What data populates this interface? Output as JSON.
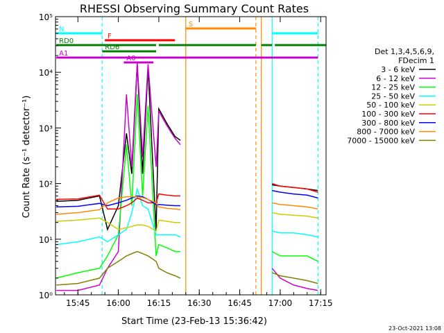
{
  "chart_data": {
    "type": "line",
    "title": "RHESSI Observing Summary Count Rates",
    "xlabel": "Start Time (23-Feb-13 15:36:42)",
    "ylabel": "Count Rate (s⁻¹ detector⁻¹)",
    "y_scale": "log",
    "ylim": [
      1,
      100000
    ],
    "xlim": [
      "15:36:42",
      "17:17:00"
    ],
    "x_ticks": [
      "15:45",
      "16:00",
      "16:15",
      "16:30",
      "16:45",
      "17:00",
      "17:15"
    ],
    "y_ticks": [
      "10⁰",
      "10¹",
      "10²",
      "10³",
      "10⁴",
      "10⁵"
    ],
    "legend_title": [
      "Det 1,3,4,5,6,9,",
      "FDecim 1"
    ],
    "legend_position": "right",
    "footer_date": "23-Oct-2021 13:08",
    "series": [
      {
        "name": "3 - 6 keV",
        "color": "#000000",
        "x": [
          "15:37",
          "15:45",
          "15:53",
          "15:56",
          "16:00",
          "16:03",
          "16:05",
          "16:07",
          "16:09",
          "16:11",
          "16:14",
          "16:15",
          "16:18",
          "16:21",
          "16:23",
          "16:55",
          "16:57",
          "17:00",
          "17:05",
          "17:10",
          "17:14"
        ],
        "values": [
          48,
          50,
          60,
          15,
          40,
          800,
          150,
          14000,
          150,
          12000,
          14,
          2200,
          1200,
          700,
          600,
          null,
          95,
          90,
          85,
          80,
          75
        ]
      },
      {
        "name": "6 - 12 keV",
        "color": "#cc00cc",
        "x": [
          "15:37",
          "15:45",
          "15:53",
          "15:56",
          "16:00",
          "16:03",
          "16:05",
          "16:07",
          "16:09",
          "16:11",
          "16:14",
          "16:15",
          "16:18",
          "16:21",
          "16:23",
          "16:55",
          "16:57",
          "17:00",
          "17:05",
          "17:10",
          "17:14"
        ],
        "values": [
          1.2,
          1.2,
          1.5,
          3,
          6,
          4000,
          200,
          15000,
          300,
          14000,
          200,
          2000,
          1100,
          650,
          500,
          null,
          3,
          2,
          1.5,
          1.3,
          1.2
        ]
      },
      {
        "name": "12 - 25 keV",
        "color": "#00ff00",
        "x": [
          "15:37",
          "15:45",
          "15:53",
          "15:56",
          "16:00",
          "16:03",
          "16:05",
          "16:07",
          "16:09",
          "16:11",
          "16:14",
          "16:15",
          "16:18",
          "16:21",
          "16:23",
          "16:55",
          "16:57",
          "17:00",
          "17:05",
          "17:10",
          "17:14"
        ],
        "values": [
          2,
          2.5,
          3,
          5,
          12,
          500,
          40,
          4000,
          60,
          2500,
          5,
          8,
          7,
          6,
          6,
          null,
          6,
          5,
          5,
          5,
          4
        ]
      },
      {
        "name": "25 - 50 keV",
        "color": "#00ffff",
        "x": [
          "15:37",
          "15:45",
          "15:53",
          "15:56",
          "16:00",
          "16:03",
          "16:05",
          "16:07",
          "16:09",
          "16:11",
          "16:14",
          "16:15",
          "16:18",
          "16:21",
          "16:23",
          "16:55",
          "16:57",
          "17:00",
          "17:05",
          "17:10",
          "17:14"
        ],
        "values": [
          8,
          9,
          11,
          9,
          12,
          15,
          30,
          80,
          40,
          35,
          12,
          12,
          12,
          12,
          11,
          null,
          14,
          13,
          13,
          12,
          11
        ]
      },
      {
        "name": "50 - 100 keV",
        "color": "#cccc00",
        "x": [
          "15:37",
          "15:45",
          "15:53",
          "15:56",
          "16:00",
          "16:03",
          "16:05",
          "16:07",
          "16:09",
          "16:11",
          "16:14",
          "16:15",
          "16:18",
          "16:21",
          "16:23",
          "16:55",
          "16:57",
          "17:00",
          "17:05",
          "17:10",
          "17:14"
        ],
        "values": [
          21,
          22,
          24,
          20,
          15,
          16,
          17,
          18,
          18,
          17,
          14,
          22,
          21,
          20,
          20,
          null,
          30,
          28,
          27,
          26,
          24
        ]
      },
      {
        "name": "100 - 300 keV",
        "color": "#ff0000",
        "x": [
          "15:37",
          "15:45",
          "15:53",
          "15:56",
          "16:00",
          "16:03",
          "16:05",
          "16:07",
          "16:09",
          "16:11",
          "16:14",
          "16:15",
          "16:18",
          "16:21",
          "16:23",
          "16:55",
          "16:57",
          "17:00",
          "17:05",
          "17:10",
          "17:14"
        ],
        "values": [
          52,
          53,
          62,
          35,
          35,
          40,
          45,
          55,
          50,
          45,
          45,
          65,
          62,
          60,
          60,
          null,
          100,
          90,
          85,
          80,
          70
        ]
      },
      {
        "name": "300 - 800 keV",
        "color": "#0000ff",
        "x": [
          "15:37",
          "15:45",
          "15:53",
          "15:56",
          "16:00",
          "16:03",
          "16:05",
          "16:07",
          "16:09",
          "16:11",
          "16:14",
          "16:15",
          "16:18",
          "16:21",
          "16:23",
          "16:55",
          "16:57",
          "17:00",
          "17:05",
          "17:10",
          "17:14"
        ],
        "values": [
          38,
          39,
          44,
          40,
          45,
          50,
          55,
          60,
          58,
          52,
          42,
          42,
          41,
          40,
          40,
          null,
          75,
          70,
          65,
          62,
          55
        ]
      },
      {
        "name": "800 - 7000 keV",
        "color": "#ff8800",
        "x": [
          "15:37",
          "15:45",
          "15:53",
          "15:56",
          "16:00",
          "16:03",
          "16:05",
          "16:07",
          "16:09",
          "16:11",
          "16:14",
          "16:15",
          "16:18",
          "16:21",
          "16:23",
          "16:55",
          "16:57",
          "17:00",
          "17:05",
          "17:10",
          "17:14"
        ],
        "values": [
          28,
          30,
          34,
          45,
          55,
          58,
          58,
          58,
          56,
          52,
          45,
          38,
          36,
          35,
          34,
          null,
          45,
          42,
          40,
          38,
          35
        ]
      },
      {
        "name": "7000 - 15000 keV",
        "color": "#808000",
        "x": [
          "15:37",
          "15:45",
          "15:53",
          "15:56",
          "16:00",
          "16:03",
          "16:05",
          "16:07",
          "16:09",
          "16:11",
          "16:14",
          "16:15",
          "16:18",
          "16:21",
          "16:23",
          "16:55",
          "16:57",
          "17:00",
          "17:05",
          "17:10",
          "17:14"
        ],
        "values": [
          1.5,
          1.6,
          2,
          3,
          4,
          5,
          5.5,
          6,
          5.5,
          5,
          4,
          3,
          2.5,
          2.2,
          2,
          null,
          2.5,
          2.2,
          2,
          1.8,
          1.6
        ]
      }
    ],
    "flag_bars": [
      {
        "label": "N",
        "color": "#00ffff",
        "segments": [
          [
            "15:37",
            "15:54"
          ],
          [
            "16:57",
            "17:14"
          ]
        ]
      },
      {
        "label": "S",
        "color": "#ff8800",
        "segments": [
          [
            "16:25",
            "16:51"
          ]
        ]
      },
      {
        "label": "F",
        "color": "#ff0000",
        "segments": [
          [
            "15:55",
            "16:21"
          ]
        ]
      },
      {
        "label": "RD0",
        "color": "#008000",
        "segments": [
          [
            "15:37",
            "16:14"
          ],
          [
            "16:15",
            "16:51"
          ],
          [
            "16:53",
            "16:57"
          ],
          [
            "16:58",
            "17:17"
          ]
        ]
      },
      {
        "label": "RD6",
        "color": "#008000",
        "segments": [
          [
            "15:54",
            "16:14"
          ]
        ]
      },
      {
        "label": "A0",
        "color": "#cc00cc",
        "segments": [
          [
            "16:02",
            "16:13"
          ]
        ]
      },
      {
        "label": "A1",
        "color": "#cc00cc",
        "segments": [
          [
            "15:37",
            "17:14"
          ]
        ]
      }
    ],
    "vertical_markers": [
      {
        "time": "15:54",
        "color": "#00ffff",
        "style": "dashed"
      },
      {
        "time": "16:25",
        "color": "#ff8800",
        "style": "solid"
      },
      {
        "time": "16:51",
        "color": "#ff8800",
        "style": "dashed"
      },
      {
        "time": "16:53",
        "color": "#ff8800",
        "style": "solid"
      },
      {
        "time": "16:57",
        "color": "#00ffff",
        "style": "solid"
      },
      {
        "time": "17:14",
        "color": "#00ffff",
        "style": "dashed"
      }
    ]
  }
}
